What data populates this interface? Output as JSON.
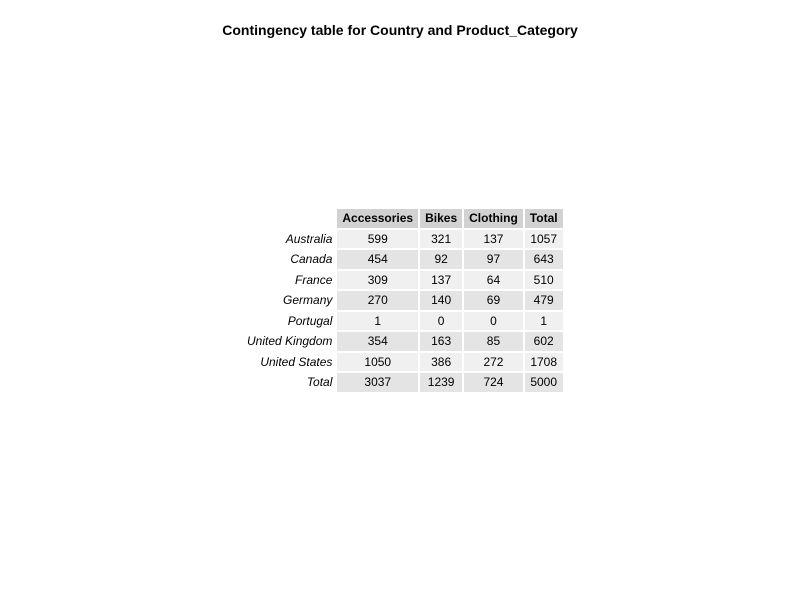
{
  "chart_data": {
    "type": "table",
    "title": "Contingency table for Country and Product_Category",
    "columns": [
      "Accessories",
      "Bikes",
      "Clothing",
      "Total"
    ],
    "rows": [
      {
        "label": "Australia",
        "values": [
          "599",
          "321",
          "137",
          "1057"
        ]
      },
      {
        "label": "Canada",
        "values": [
          "454",
          "92",
          "97",
          "643"
        ]
      },
      {
        "label": "France",
        "values": [
          "309",
          "137",
          "64",
          "510"
        ]
      },
      {
        "label": "Germany",
        "values": [
          "270",
          "140",
          "69",
          "479"
        ]
      },
      {
        "label": "Portugal",
        "values": [
          "1",
          "0",
          "0",
          "1"
        ]
      },
      {
        "label": "United Kingdom",
        "values": [
          "354",
          "163",
          "85",
          "602"
        ]
      },
      {
        "label": "United States",
        "values": [
          "1050",
          "386",
          "272",
          "1708"
        ]
      },
      {
        "label": "Total",
        "values": [
          "3037",
          "1239",
          "724",
          "5000"
        ]
      }
    ],
    "colors": {
      "header_bg": "#d2d2d2",
      "row_bg_light": "#f0f0f0",
      "row_bg_dark": "#e4e4e4"
    }
  }
}
